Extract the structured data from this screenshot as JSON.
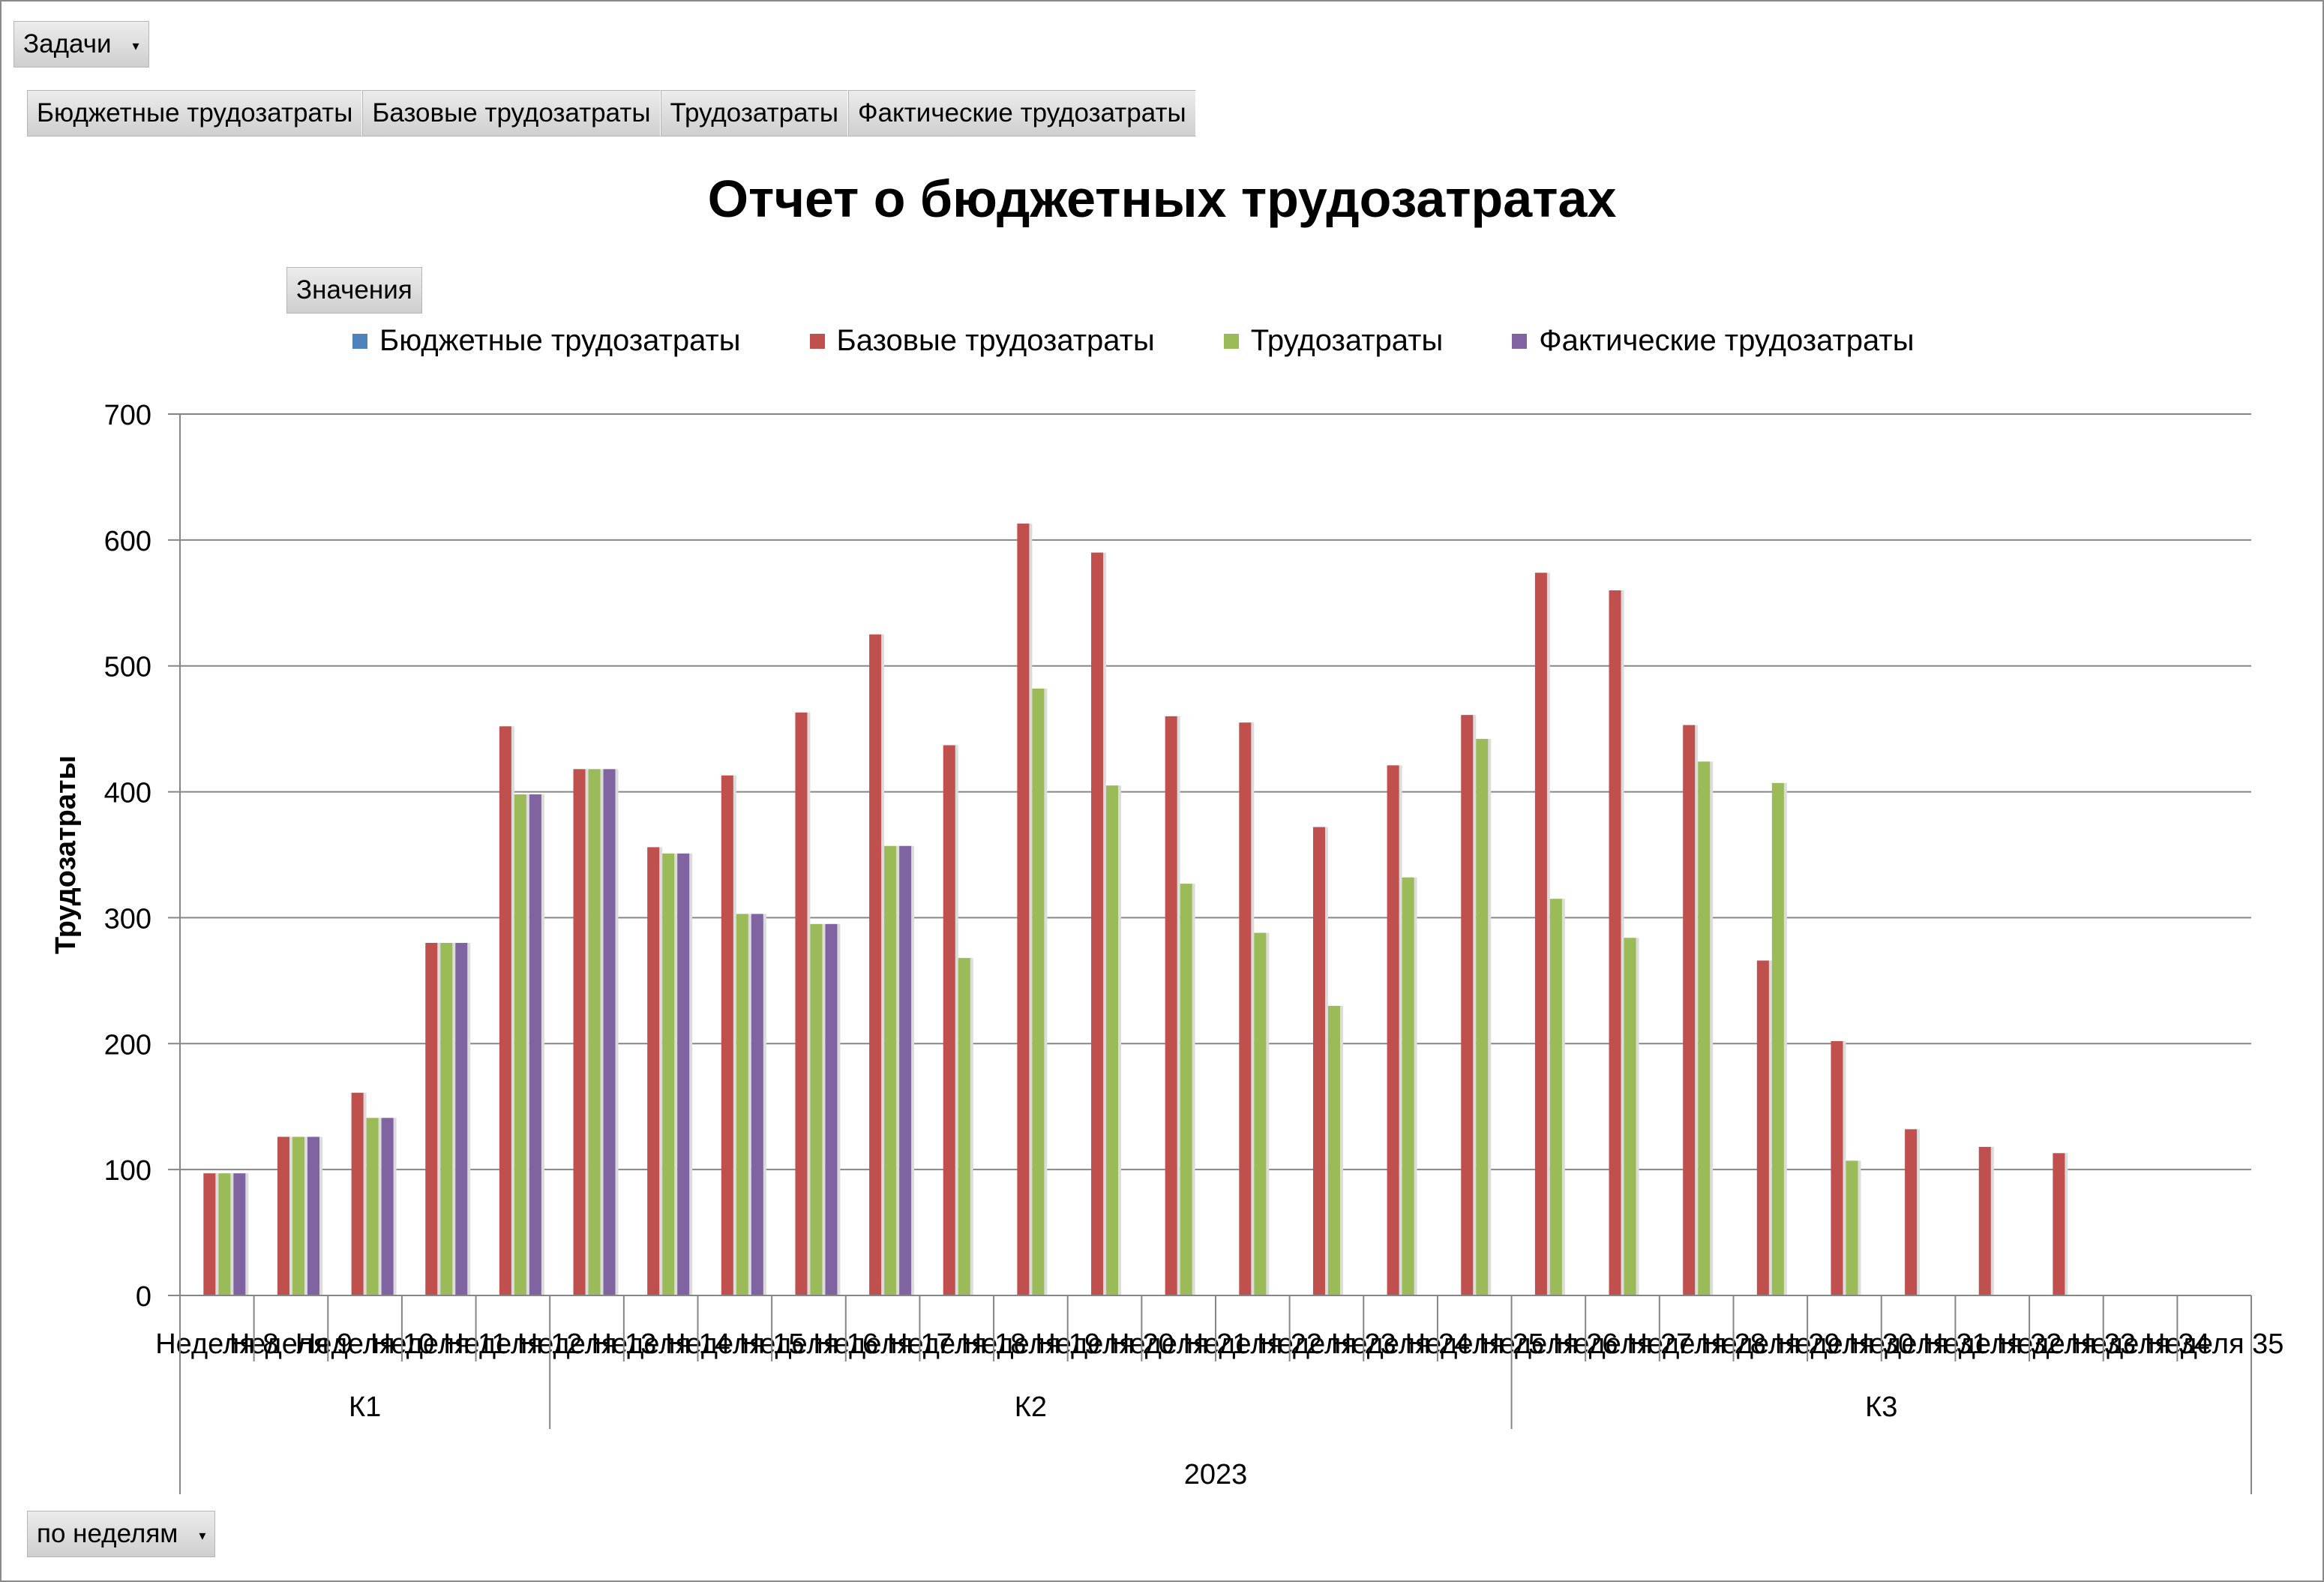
{
  "filter": {
    "label": "Задачи",
    "arrow": "▾"
  },
  "fields": [
    "Бюджетные трудозатраты",
    "Базовые трудозатраты",
    "Трудозатраты",
    "Фактические трудозатраты"
  ],
  "values_button": "Значения",
  "period_button": {
    "label": "по неделям",
    "arrow": "▾"
  },
  "chart_data": {
    "type": "bar",
    "title": "Отчет о бюджетных трудозатратах",
    "ylabel": "Трудозатраты",
    "xlabel": "",
    "ylim": [
      0,
      700
    ],
    "yticks": [
      0,
      100,
      200,
      300,
      400,
      500,
      600,
      700
    ],
    "grid": true,
    "legend_position": "top",
    "categories": [
      "Неделя 8",
      "Неделя 9",
      "Неделя 10",
      "Неделя 11",
      "Неделя 12",
      "Неделя 13",
      "Неделя 14",
      "Неделя 15",
      "Неделя 16",
      "Неделя 17",
      "Неделя 18",
      "Неделя 19",
      "Неделя 20",
      "Неделя 21",
      "Неделя 22",
      "Неделя 23",
      "Неделя 24",
      "Неделя 25",
      "Неделя 26",
      "Неделя 27",
      "Неделя 28",
      "Неделя 29",
      "Неделя 30",
      "Неделя 31",
      "Неделя 32",
      "Неделя 33",
      "Неделя 34",
      "Неделя 35"
    ],
    "quarters": [
      {
        "label": "К1",
        "start": 0,
        "count": 5
      },
      {
        "label": "К2",
        "start": 5,
        "count": 13
      },
      {
        "label": "К3",
        "start": 18,
        "count": 10
      }
    ],
    "year": "2023",
    "series": [
      {
        "name": "Бюджетные трудозатраты",
        "color": "#4F81BD",
        "values": [
          0,
          0,
          0,
          0,
          0,
          0,
          0,
          0,
          0,
          0,
          0,
          0,
          0,
          0,
          0,
          0,
          0,
          0,
          0,
          0,
          0,
          0,
          0,
          0,
          0,
          0,
          0,
          0
        ]
      },
      {
        "name": "Базовые трудозатраты",
        "color": "#C0504D",
        "values": [
          97,
          126,
          161,
          280,
          452,
          418,
          356,
          413,
          463,
          525,
          437,
          613,
          590,
          460,
          455,
          372,
          421,
          461,
          574,
          560,
          453,
          266,
          202,
          132,
          118,
          113,
          0,
          0
        ]
      },
      {
        "name": "Трудозатраты",
        "color": "#9BBB59",
        "values": [
          97,
          126,
          141,
          280,
          398,
          418,
          351,
          303,
          295,
          357,
          268,
          482,
          405,
          327,
          288,
          230,
          332,
          442,
          315,
          284,
          424,
          407,
          107,
          0,
          0,
          0,
          0,
          0
        ]
      },
      {
        "name": "Фактические трудозатраты",
        "color": "#8064A2",
        "values": [
          97,
          126,
          141,
          280,
          398,
          418,
          351,
          303,
          295,
          357,
          0,
          0,
          0,
          0,
          0,
          0,
          0,
          0,
          0,
          0,
          0,
          0,
          0,
          0,
          0,
          0,
          0,
          0
        ]
      }
    ]
  }
}
